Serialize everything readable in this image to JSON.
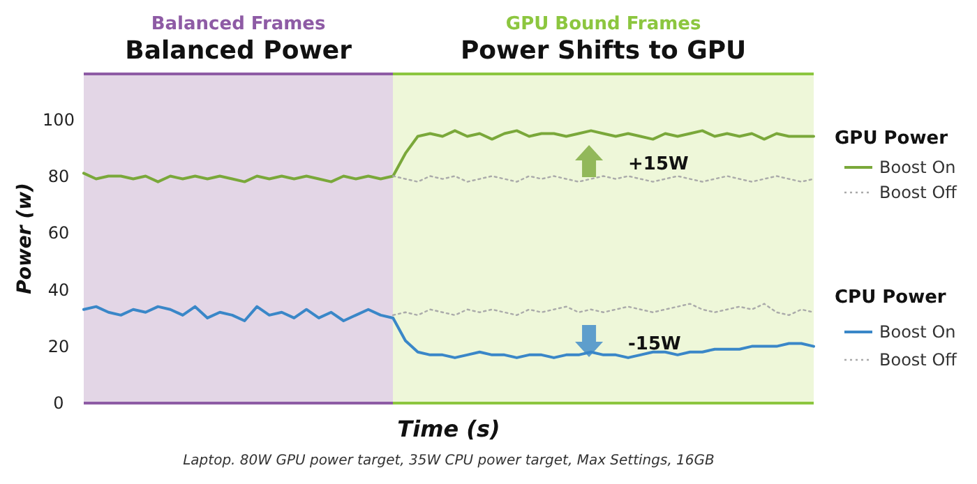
{
  "chart_data": {
    "type": "line",
    "xlabel": "Time (s)",
    "ylabel": "Power (w)",
    "categories": [
      null,
      null,
      null,
      null,
      null,
      null,
      null,
      null,
      null,
      null,
      null,
      null,
      null,
      null,
      null,
      null,
      null,
      null,
      null,
      null,
      null,
      null,
      null,
      null,
      null,
      null,
      null,
      null,
      null,
      null,
      null,
      null,
      null,
      null,
      null,
      null,
      null,
      null,
      null,
      null,
      null,
      null,
      null,
      null,
      null,
      null,
      null,
      null,
      null,
      null,
      null,
      null,
      null,
      null,
      null,
      null,
      null,
      null,
      null,
      null
    ],
    "ylim": [
      0,
      116
    ],
    "yticks": [
      0,
      20,
      40,
      60,
      80,
      100
    ],
    "tick_labels": "y",
    "legend": "right",
    "series": [
      {
        "name": "Boost On",
        "color": "#7aa83a",
        "line_style": "solid",
        "values": [
          81,
          79,
          80,
          80,
          79,
          80,
          78,
          80,
          79,
          80,
          79,
          80,
          79,
          78,
          80,
          79,
          80,
          79,
          80,
          79,
          78,
          80,
          79,
          80,
          79,
          80,
          88,
          94,
          95,
          94,
          96,
          94,
          95,
          93,
          95,
          96,
          94,
          95,
          95,
          94,
          95,
          96,
          95,
          94,
          95,
          94,
          93,
          95,
          94,
          95,
          96,
          94,
          95,
          94,
          95,
          93,
          95,
          94,
          94,
          94
        ]
      },
      {
        "name": "Boost Off",
        "color": "#aaaaaa",
        "line_style": "dotted",
        "values": [
          null,
          null,
          null,
          null,
          null,
          null,
          null,
          null,
          null,
          null,
          null,
          null,
          null,
          null,
          null,
          null,
          null,
          null,
          null,
          null,
          null,
          null,
          null,
          null,
          null,
          80,
          79,
          78,
          80,
          79,
          80,
          78,
          79,
          80,
          79,
          78,
          80,
          79,
          80,
          79,
          78,
          79,
          80,
          79,
          80,
          79,
          78,
          79,
          80,
          79,
          78,
          79,
          80,
          79,
          78,
          79,
          80,
          79,
          78,
          79
        ]
      },
      {
        "name": "Boost On",
        "color": "#3a87c8",
        "line_style": "solid",
        "values": [
          33,
          34,
          32,
          31,
          33,
          32,
          34,
          33,
          31,
          34,
          30,
          32,
          31,
          29,
          34,
          31,
          32,
          30,
          33,
          30,
          32,
          29,
          31,
          33,
          31,
          30,
          22,
          18,
          17,
          17,
          16,
          17,
          18,
          17,
          17,
          16,
          17,
          17,
          16,
          17,
          17,
          18,
          17,
          17,
          16,
          17,
          18,
          18,
          17,
          18,
          18,
          19,
          19,
          19,
          20,
          20,
          20,
          21,
          21,
          20
        ]
      },
      {
        "name": "Boost Off",
        "color": "#aaaaaa",
        "line_style": "dotted",
        "values": [
          null,
          null,
          null,
          null,
          null,
          null,
          null,
          null,
          null,
          null,
          null,
          null,
          null,
          null,
          null,
          null,
          null,
          null,
          null,
          null,
          null,
          null,
          null,
          null,
          null,
          31,
          32,
          31,
          33,
          32,
          31,
          33,
          32,
          33,
          32,
          31,
          33,
          32,
          33,
          34,
          32,
          33,
          32,
          33,
          34,
          33,
          32,
          33,
          34,
          35,
          33,
          32,
          33,
          34,
          33,
          35,
          32,
          31,
          33,
          32
        ]
      }
    ],
    "annotations": [
      "Balanced Frames",
      "Balanced Power",
      "GPU Bound Frames",
      "Power Shifts to GPU",
      "GPU Power",
      "CPU Power",
      "+15W",
      "-15W",
      "Laptop. 80W GPU power target, 35W CPU power target, Max Settings, 16GB"
    ]
  }
}
